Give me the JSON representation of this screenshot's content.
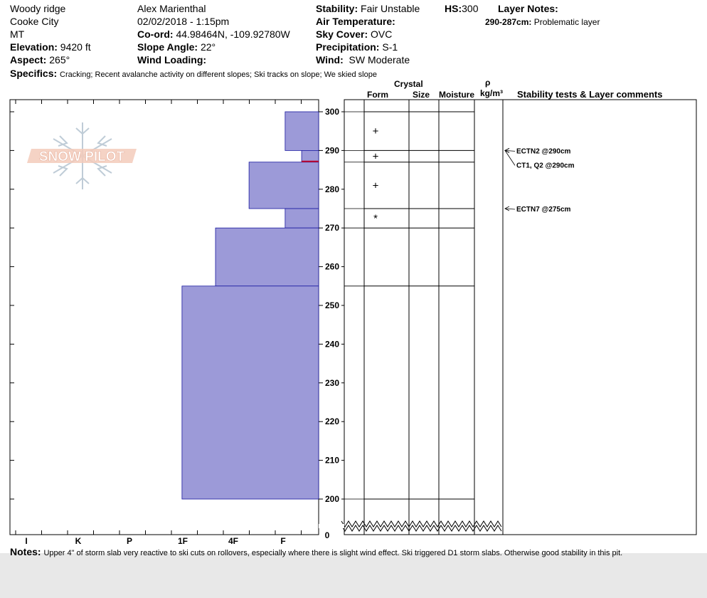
{
  "header": {
    "location": "Woody ridge",
    "region": "Cooke City",
    "state": "MT",
    "elevation_label": "Elevation:",
    "elevation_value": "9420 ft",
    "aspect_label": "Aspect:",
    "aspect_value": "265°",
    "observer": "Alex Marienthal",
    "datetime": "02/02/2018 - 1:15pm",
    "coord_label": "Co-ord:",
    "coord_value": "44.98464N, -109.92780W",
    "slope_label": "Slope Angle:",
    "slope_value": "22°",
    "wind_loading_label": "Wind Loading:",
    "wind_loading_value": "",
    "stability_label": "Stability:",
    "stability_value": "Fair Unstable",
    "hs_label": "HS:",
    "hs_value": "300",
    "air_temp_label": "Air Temperature:",
    "air_temp_value": "",
    "sky_label": "Sky Cover:",
    "sky_value": "OVC",
    "precip_label": "Precipitation:",
    "precip_value": "S-1",
    "wind_label": "Wind:",
    "wind_value": "SW Moderate",
    "layer_notes_label": "Layer Notes:",
    "layer_note_range": "290-287cm:",
    "layer_note_text": "Problematic layer",
    "specifics_label": "Specifics:",
    "specifics_value": "Cracking;  Recent avalanche activity on different slopes;  Ski tracks on slope;  We skied slope",
    "notes_label": "Notes:",
    "notes_value": "Upper 4\" of storm slab very reactive to ski cuts on rollovers, especially where there is slight wind effect. Ski triggered D1 storm slabs. Otherwise good stability in this pit."
  },
  "columns": {
    "crystal": "Crystal",
    "form": "Form",
    "size": "Size",
    "moisture": "Moisture",
    "rho": "ρ",
    "density_unit": "kg/m³",
    "stability_comments": "Stability tests & Layer comments"
  },
  "logo_text": "SNOW PILOT",
  "colors": {
    "layer_fill": "#9c9ad8",
    "layer_stroke": "#1a1aa0",
    "weak_layer": "#c0002a",
    "logo": "#f2c6b4"
  },
  "chart_data": {
    "type": "snow-profile",
    "y_axis": {
      "min": 200,
      "max": 300,
      "break_to": 0,
      "ticks": [
        300,
        290,
        280,
        270,
        260,
        250,
        240,
        230,
        220,
        210,
        200
      ],
      "break_label": "0"
    },
    "hardness_scale": [
      "I",
      "K",
      "P",
      "1F",
      "4F",
      "F"
    ],
    "layers": [
      {
        "top": 300,
        "bottom": 290,
        "hardness": 0.65
      },
      {
        "top": 290,
        "bottom": 287,
        "hardness": 0.33
      },
      {
        "top": 287,
        "bottom": 275,
        "hardness": 1.35
      },
      {
        "top": 275,
        "bottom": 270,
        "hardness": 0.65
      },
      {
        "top": 270,
        "bottom": 255,
        "hardness": 2.0
      },
      {
        "top": 255,
        "bottom": 200,
        "hardness": 2.65
      }
    ],
    "weak_layer": {
      "top": 287.3,
      "bottom": 287
    },
    "grain_forms": [
      {
        "height": 295,
        "symbol": "+"
      },
      {
        "height": 288.5,
        "symbol": "+"
      },
      {
        "height": 281,
        "symbol": "+"
      },
      {
        "height": 272.5,
        "symbol": "*"
      }
    ],
    "tests": [
      {
        "label": "ECTN2 @290cm",
        "height": 290
      },
      {
        "label": "CT1, Q2 @290cm",
        "height": 290
      },
      {
        "label": "ECTN7 @275cm",
        "height": 275
      }
    ]
  }
}
